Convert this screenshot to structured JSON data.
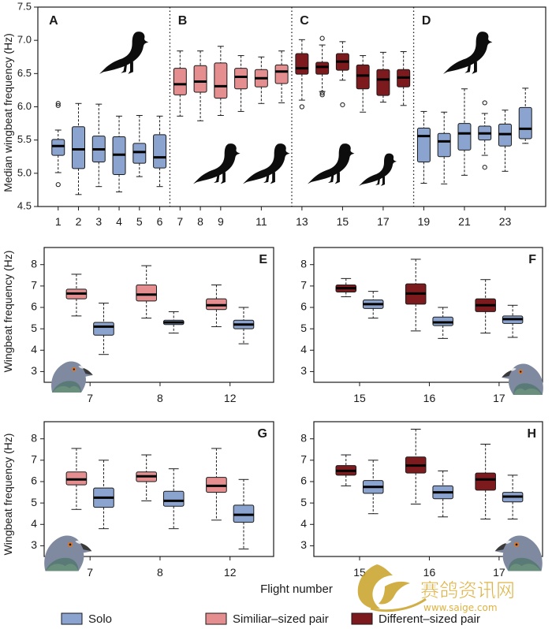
{
  "colors": {
    "solo": "#8aa3cf",
    "similar_pair": "#e58e90",
    "different_pair": "#7d1a1e"
  },
  "chart_data": [
    {
      "type": "box",
      "id": "A-D",
      "ylabel": "Median wingbeat frequency (Hz)",
      "ylim": [
        4.5,
        7.5
      ],
      "yticks": [
        "4.5",
        "5.0",
        "5.5",
        "6.0",
        "6.5",
        "7.0",
        "7.5"
      ],
      "xlim": [
        0,
        25
      ],
      "xticks": [
        "1",
        "2",
        "3",
        "4",
        "5",
        "6",
        "7",
        "8",
        "9",
        "11",
        "13",
        "15",
        "17",
        "19",
        "21",
        "23"
      ],
      "xtick_pos": [
        1,
        2,
        3,
        4,
        5,
        6,
        7,
        8,
        9,
        11,
        13,
        15,
        17,
        19,
        21,
        23
      ],
      "panel_labels": [
        "A",
        "B",
        "C",
        "D"
      ],
      "section_dividers_x": [
        6.5,
        12.5,
        18.5
      ],
      "boxes": [
        {
          "x": 1,
          "group": "solo",
          "wl": 5.01,
          "q1": 5.27,
          "med": 5.41,
          "q3": 5.51,
          "wh": 5.65,
          "outliers": [
            4.83,
            6.02,
            6.05
          ]
        },
        {
          "x": 2,
          "group": "solo",
          "wl": 4.68,
          "q1": 5.07,
          "med": 5.36,
          "q3": 5.7,
          "wh": 6.05,
          "outliers": []
        },
        {
          "x": 3,
          "group": "solo",
          "wl": 4.8,
          "q1": 5.17,
          "med": 5.36,
          "q3": 5.56,
          "wh": 6.04,
          "outliers": []
        },
        {
          "x": 4,
          "group": "solo",
          "wl": 4.72,
          "q1": 4.98,
          "med": 5.28,
          "q3": 5.55,
          "wh": 5.86,
          "outliers": []
        },
        {
          "x": 5,
          "group": "solo",
          "wl": 4.95,
          "q1": 5.15,
          "med": 5.32,
          "q3": 5.45,
          "wh": 5.87,
          "outliers": []
        },
        {
          "x": 6,
          "group": "solo",
          "wl": 4.8,
          "q1": 5.08,
          "med": 5.24,
          "q3": 5.58,
          "wh": 5.86,
          "outliers": []
        },
        {
          "x": 7,
          "group": "similar_pair",
          "wl": 5.86,
          "q1": 6.18,
          "med": 6.34,
          "q3": 6.58,
          "wh": 6.84,
          "outliers": []
        },
        {
          "x": 8,
          "group": "similar_pair",
          "wl": 5.79,
          "q1": 6.22,
          "med": 6.38,
          "q3": 6.62,
          "wh": 6.84,
          "outliers": []
        },
        {
          "x": 9,
          "group": "similar_pair",
          "wl": 5.87,
          "q1": 6.13,
          "med": 6.31,
          "q3": 6.66,
          "wh": 6.91,
          "outliers": []
        },
        {
          "x": 10,
          "group": "similar_pair",
          "wl": 5.93,
          "q1": 6.27,
          "med": 6.45,
          "q3": 6.58,
          "wh": 6.77,
          "outliers": []
        },
        {
          "x": 11,
          "group": "similar_pair",
          "wl": 6.05,
          "q1": 6.3,
          "med": 6.43,
          "q3": 6.56,
          "wh": 6.75,
          "outliers": []
        },
        {
          "x": 12,
          "group": "similar_pair",
          "wl": 6.06,
          "q1": 6.35,
          "med": 6.53,
          "q3": 6.63,
          "wh": 6.84,
          "outliers": []
        },
        {
          "x": 13,
          "group": "different_pair",
          "wl": 6.1,
          "q1": 6.49,
          "med": 6.58,
          "q3": 6.8,
          "wh": 7.01,
          "outliers": [
            6.0
          ]
        },
        {
          "x": 14,
          "group": "different_pair",
          "wl": 6.23,
          "q1": 6.49,
          "med": 6.6,
          "q3": 6.67,
          "wh": 6.93,
          "outliers": [
            7.03,
            6.21,
            6.18
          ]
        },
        {
          "x": 15,
          "group": "different_pair",
          "wl": 6.4,
          "q1": 6.55,
          "med": 6.68,
          "q3": 6.8,
          "wh": 6.98,
          "outliers": [
            6.03
          ]
        },
        {
          "x": 16,
          "group": "different_pair",
          "wl": 5.92,
          "q1": 6.27,
          "med": 6.47,
          "q3": 6.63,
          "wh": 6.77,
          "outliers": []
        },
        {
          "x": 17,
          "group": "different_pair",
          "wl": 6.07,
          "q1": 6.17,
          "med": 6.41,
          "q3": 6.56,
          "wh": 6.82,
          "outliers": []
        },
        {
          "x": 18,
          "group": "different_pair",
          "wl": 6.02,
          "q1": 6.3,
          "med": 6.44,
          "q3": 6.56,
          "wh": 6.83,
          "outliers": []
        },
        {
          "x": 19,
          "group": "solo",
          "wl": 4.85,
          "q1": 5.17,
          "med": 5.56,
          "q3": 5.68,
          "wh": 5.93,
          "outliers": []
        },
        {
          "x": 20,
          "group": "solo",
          "wl": 4.84,
          "q1": 5.25,
          "med": 5.48,
          "q3": 5.6,
          "wh": 5.92,
          "outliers": []
        },
        {
          "x": 21,
          "group": "solo",
          "wl": 4.97,
          "q1": 5.35,
          "med": 5.6,
          "q3": 5.75,
          "wh": 6.27,
          "outliers": []
        },
        {
          "x": 22,
          "group": "solo",
          "wl": 5.27,
          "q1": 5.5,
          "med": 5.6,
          "q3": 5.71,
          "wh": 5.9,
          "outliers": [
            6.06,
            5.09
          ]
        },
        {
          "x": 23,
          "group": "solo",
          "wl": 5.03,
          "q1": 5.41,
          "med": 5.59,
          "q3": 5.74,
          "wh": 5.95,
          "outliers": []
        },
        {
          "x": 24,
          "group": "solo",
          "wl": 5.45,
          "q1": 5.52,
          "med": 5.67,
          "q3": 5.99,
          "wh": 6.28,
          "outliers": []
        }
      ]
    },
    {
      "type": "box",
      "id": "E",
      "panel_label": "E",
      "ylabel": "",
      "ylim": [
        2.5,
        8.8
      ],
      "yticks": [
        "3",
        "4",
        "5",
        "6",
        "7",
        "8"
      ],
      "categories": [
        "7",
        "8",
        "12"
      ],
      "boxes": [
        {
          "cat": 0,
          "group": "similar_pair",
          "wl": 5.6,
          "q1": 6.4,
          "med": 6.65,
          "q3": 6.85,
          "wh": 7.55
        },
        {
          "cat": 0,
          "group": "solo",
          "wl": 3.8,
          "q1": 4.7,
          "med": 5.1,
          "q3": 5.3,
          "wh": 6.2
        },
        {
          "cat": 1,
          "group": "similar_pair",
          "wl": 5.5,
          "q1": 6.3,
          "med": 6.6,
          "q3": 7.05,
          "wh": 7.95
        },
        {
          "cat": 1,
          "group": "solo",
          "wl": 4.8,
          "q1": 5.2,
          "med": 5.3,
          "q3": 5.4,
          "wh": 5.8
        },
        {
          "cat": 2,
          "group": "similar_pair",
          "wl": 5.1,
          "q1": 5.9,
          "med": 6.1,
          "q3": 6.4,
          "wh": 7.05
        },
        {
          "cat": 2,
          "group": "solo",
          "wl": 4.3,
          "q1": 5.0,
          "med": 5.2,
          "q3": 5.4,
          "wh": 6.0
        }
      ]
    },
    {
      "type": "box",
      "id": "F",
      "panel_label": "F",
      "ylabel": "",
      "ylim": [
        2.5,
        8.8
      ],
      "yticks": [
        "3",
        "4",
        "5",
        "6",
        "7",
        "8"
      ],
      "categories": [
        "15",
        "16",
        "17"
      ],
      "boxes": [
        {
          "cat": 0,
          "group": "different_pair",
          "wl": 6.5,
          "q1": 6.72,
          "med": 6.9,
          "q3": 7.05,
          "wh": 7.35
        },
        {
          "cat": 0,
          "group": "solo",
          "wl": 5.5,
          "q1": 5.95,
          "med": 6.15,
          "q3": 6.35,
          "wh": 6.75
        },
        {
          "cat": 1,
          "group": "different_pair",
          "wl": 4.9,
          "q1": 6.15,
          "med": 6.65,
          "q3": 7.1,
          "wh": 8.25
        },
        {
          "cat": 1,
          "group": "solo",
          "wl": 4.55,
          "q1": 5.15,
          "med": 5.3,
          "q3": 5.55,
          "wh": 6.0
        },
        {
          "cat": 2,
          "group": "different_pair",
          "wl": 4.8,
          "q1": 5.8,
          "med": 6.1,
          "q3": 6.4,
          "wh": 7.3
        },
        {
          "cat": 2,
          "group": "solo",
          "wl": 4.6,
          "q1": 5.25,
          "med": 5.45,
          "q3": 5.6,
          "wh": 6.1
        }
      ]
    },
    {
      "type": "box",
      "id": "G",
      "panel_label": "G",
      "ylabel": "",
      "ylim": [
        2.5,
        8.8
      ],
      "yticks": [
        "3",
        "4",
        "5",
        "6",
        "7",
        "8"
      ],
      "categories": [
        "7",
        "8",
        "12"
      ],
      "boxes": [
        {
          "cat": 0,
          "group": "similar_pair",
          "wl": 4.7,
          "q1": 5.85,
          "med": 6.1,
          "q3": 6.45,
          "wh": 7.55
        },
        {
          "cat": 0,
          "group": "solo",
          "wl": 3.8,
          "q1": 4.8,
          "med": 5.25,
          "q3": 5.7,
          "wh": 7.0
        },
        {
          "cat": 1,
          "group": "similar_pair",
          "wl": 5.1,
          "q1": 6.0,
          "med": 6.25,
          "q3": 6.45,
          "wh": 7.25
        },
        {
          "cat": 1,
          "group": "solo",
          "wl": 3.8,
          "q1": 4.85,
          "med": 5.1,
          "q3": 5.55,
          "wh": 6.6
        },
        {
          "cat": 2,
          "group": "similar_pair",
          "wl": 4.2,
          "q1": 5.5,
          "med": 5.8,
          "q3": 6.2,
          "wh": 7.55
        },
        {
          "cat": 2,
          "group": "solo",
          "wl": 2.85,
          "q1": 4.1,
          "med": 4.45,
          "q3": 4.9,
          "wh": 6.1
        }
      ]
    },
    {
      "type": "box",
      "id": "H",
      "panel_label": "H",
      "ylabel": "",
      "ylim": [
        2.5,
        8.8
      ],
      "yticks": [
        "3",
        "4",
        "5",
        "6",
        "7",
        "8"
      ],
      "categories": [
        "15",
        "16",
        "17"
      ],
      "boxes": [
        {
          "cat": 0,
          "group": "different_pair",
          "wl": 5.8,
          "q1": 6.3,
          "med": 6.5,
          "q3": 6.75,
          "wh": 7.25
        },
        {
          "cat": 0,
          "group": "solo",
          "wl": 4.5,
          "q1": 5.45,
          "med": 5.75,
          "q3": 6.05,
          "wh": 7.0
        },
        {
          "cat": 1,
          "group": "different_pair",
          "wl": 4.95,
          "q1": 6.4,
          "med": 6.75,
          "q3": 7.15,
          "wh": 8.45
        },
        {
          "cat": 1,
          "group": "solo",
          "wl": 4.35,
          "q1": 5.2,
          "med": 5.5,
          "q3": 5.8,
          "wh": 6.5
        },
        {
          "cat": 2,
          "group": "different_pair",
          "wl": 4.25,
          "q1": 5.6,
          "med": 6.1,
          "q3": 6.4,
          "wh": 7.75
        },
        {
          "cat": 2,
          "group": "solo",
          "wl": 4.25,
          "q1": 5.05,
          "med": 5.3,
          "q3": 5.5,
          "wh": 6.3
        }
      ]
    }
  ],
  "labels": {
    "ylabel_mid": "Wingbeat frequency (Hz)",
    "ylabel_bottom": "Wingbeat frequency (Hz)",
    "xlabel": "Flight number"
  },
  "legend": [
    {
      "key": "solo",
      "label": "Solo"
    },
    {
      "key": "similar_pair",
      "label": "Similiar–sized pair"
    },
    {
      "key": "different_pair",
      "label": "Different–sized pair"
    }
  ],
  "watermark": {
    "cn": "赛鸽资讯网",
    "url": "www.saige.com"
  },
  "icons": [
    "pigeon-silhouette-icon",
    "pigeon-head-photo-icon",
    "watermark-logo-icon"
  ]
}
